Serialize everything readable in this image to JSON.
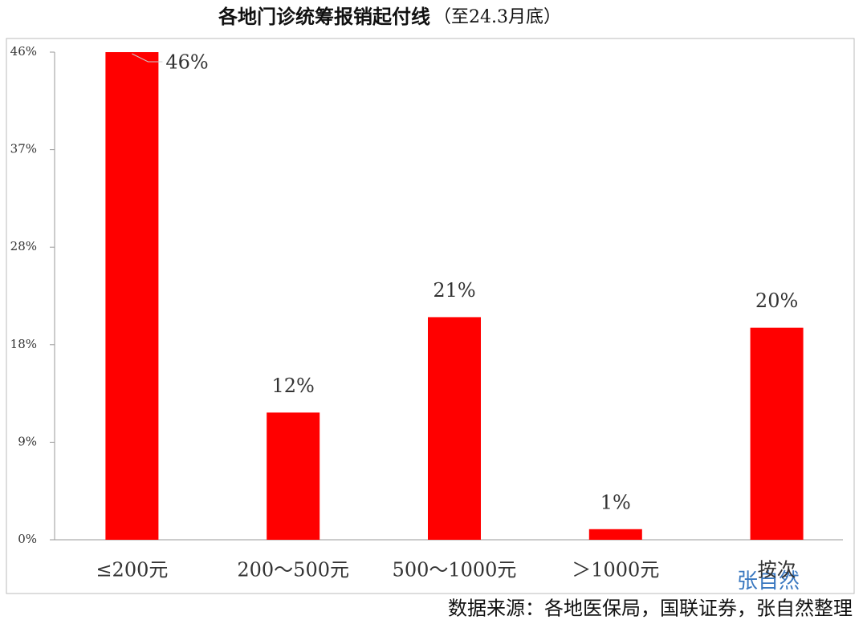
{
  "chart_data": {
    "type": "bar",
    "title": "各地门诊统筹报销起付线",
    "subtitle": "（至24.3月底）",
    "categories": [
      "≤200元",
      "200～500元",
      "500～1000元",
      "＞1000元",
      "按次"
    ],
    "values": [
      46,
      12,
      21,
      1,
      20
    ],
    "value_labels": [
      "46%",
      "12%",
      "21%",
      "1%",
      "20%"
    ],
    "color": "#ff0000",
    "ylim": [
      0,
      46
    ],
    "yticks": [
      {
        "value": 0,
        "label": "0%"
      },
      {
        "value": 9.2,
        "label": "9%"
      },
      {
        "value": 18.4,
        "label": "18%"
      },
      {
        "value": 27.6,
        "label": "28%"
      },
      {
        "value": 36.8,
        "label": "37%"
      },
      {
        "value": 46,
        "label": "46%"
      }
    ],
    "watermark": "张自然",
    "source": "数据来源：各地医保局，国联证券，张自然整理"
  }
}
